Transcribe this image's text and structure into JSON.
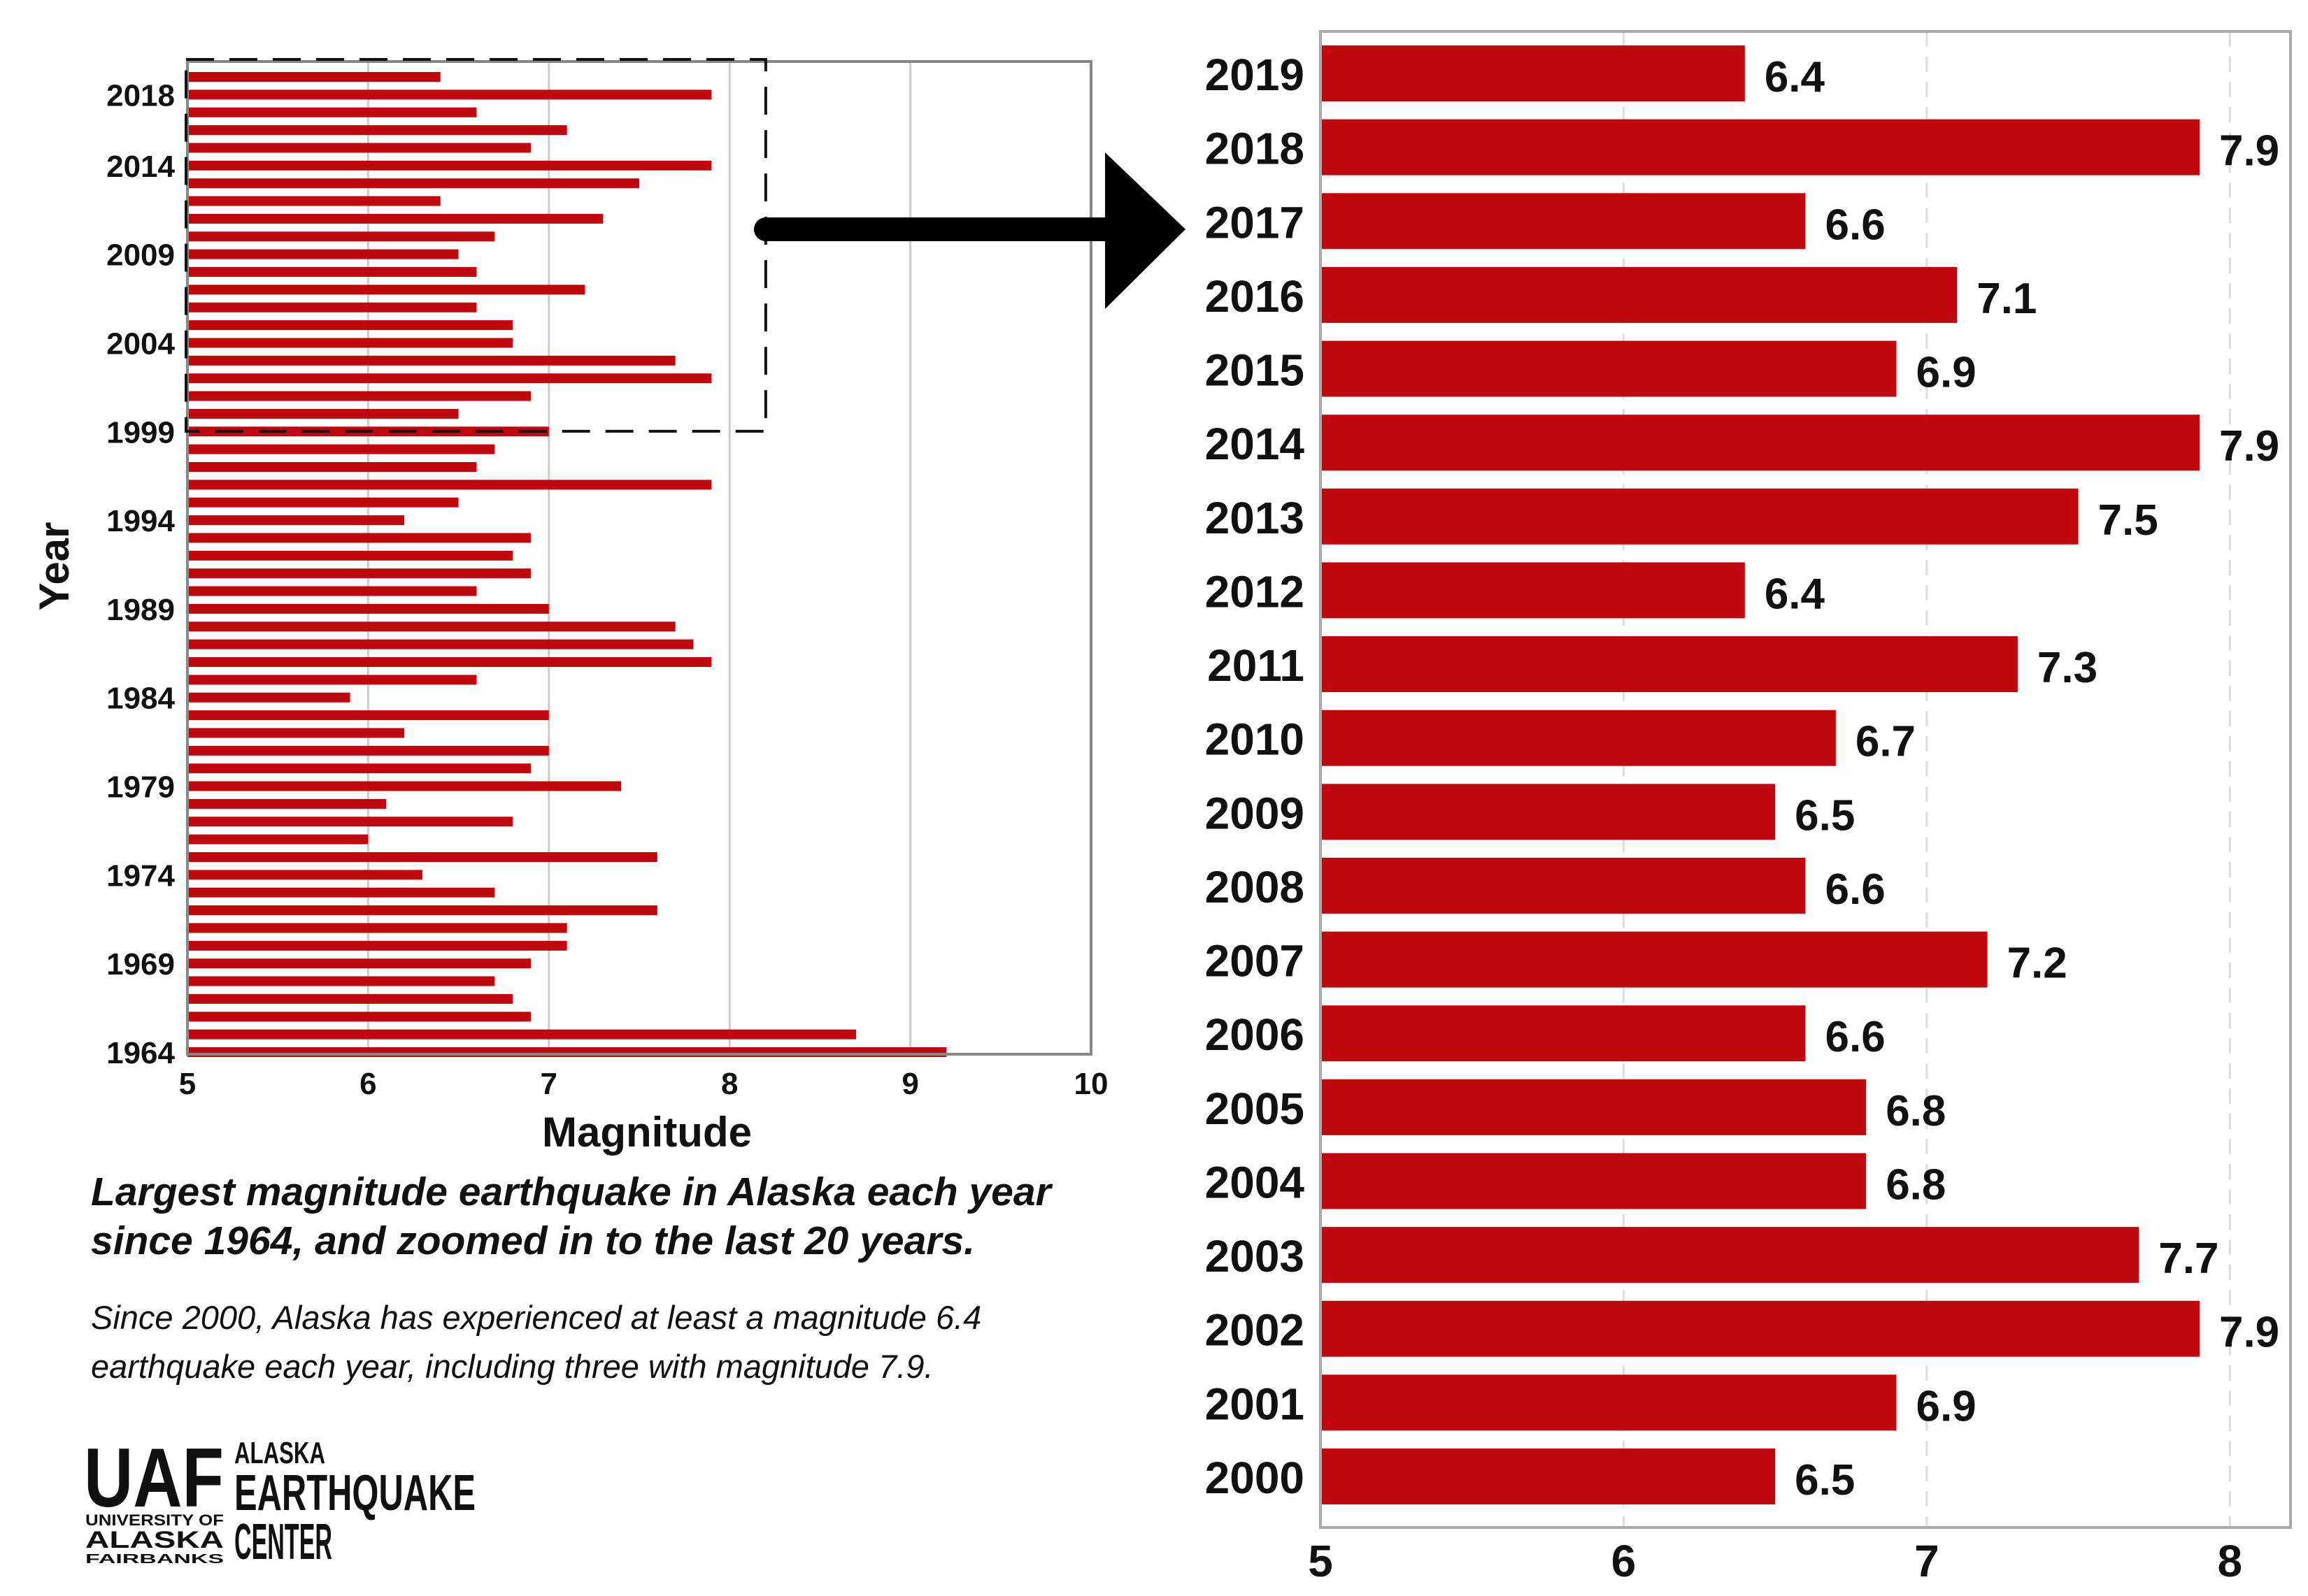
{
  "colors": {
    "bar": "#C0090E",
    "grid": "#cccccc",
    "axis": "#888888",
    "text": "#111111"
  },
  "caption": {
    "title": "Largest magnitude earthquake in Alaska each year since 1964, and zoomed in to the last 20 years.",
    "body": "Since 2000, Alaska has experienced at least a magnitude 6.4 earthquake each year, including three with magnitude 7.9."
  },
  "logo": {
    "mark": "UAF",
    "university_lines": [
      "UNIVERSITY OF",
      "ALASKA",
      "FAIRBANKS"
    ],
    "center_lines": [
      "ALASKA",
      "EARTHQUAKE",
      "CENTER"
    ]
  },
  "chart_data": [
    {
      "type": "bar",
      "orientation": "horizontal",
      "xlabel": "Magnitude",
      "ylabel": "Year",
      "xlim": [
        5,
        10
      ],
      "xticks": [
        5,
        6,
        7,
        8,
        9,
        10
      ],
      "yticks": [
        1964,
        1969,
        1974,
        1979,
        1984,
        1989,
        1994,
        1999,
        2004,
        2009,
        2014,
        2018
      ],
      "grid": "vertical",
      "categories": [
        1964,
        1965,
        1966,
        1967,
        1968,
        1969,
        1970,
        1971,
        1972,
        1973,
        1974,
        1975,
        1976,
        1977,
        1978,
        1979,
        1980,
        1981,
        1982,
        1983,
        1984,
        1985,
        1986,
        1987,
        1988,
        1989,
        1990,
        1991,
        1992,
        1993,
        1994,
        1995,
        1996,
        1997,
        1998,
        1999,
        2000,
        2001,
        2002,
        2003,
        2004,
        2005,
        2006,
        2007,
        2008,
        2009,
        2010,
        2011,
        2012,
        2013,
        2014,
        2015,
        2016,
        2017,
        2018,
        2019
      ],
      "values": [
        9.2,
        8.7,
        6.9,
        6.8,
        6.7,
        6.9,
        7.1,
        7.1,
        7.6,
        6.7,
        6.3,
        7.6,
        6.0,
        6.8,
        6.1,
        7.4,
        6.9,
        7.0,
        6.2,
        7.0,
        5.9,
        6.6,
        7.9,
        7.8,
        7.7,
        7.0,
        6.6,
        6.9,
        6.8,
        6.9,
        6.2,
        6.5,
        7.9,
        6.6,
        6.7,
        7.0,
        6.5,
        6.9,
        7.9,
        7.7,
        6.8,
        6.8,
        6.6,
        7.2,
        6.6,
        6.5,
        6.7,
        7.3,
        6.4,
        7.5,
        7.9,
        6.9,
        7.1,
        6.6,
        7.9,
        6.4
      ]
    },
    {
      "type": "bar",
      "orientation": "horizontal",
      "xlim": [
        5,
        8.2
      ],
      "xticks": [
        5,
        6,
        7,
        8
      ],
      "grid": "vertical-dashed",
      "categories": [
        "2019",
        "2018",
        "2017",
        "2016",
        "2015",
        "2014",
        "2013",
        "2012",
        "2011",
        "2010",
        "2009",
        "2008",
        "2007",
        "2006",
        "2005",
        "2004",
        "2003",
        "2002",
        "2001",
        "2000"
      ],
      "values": [
        6.4,
        7.9,
        6.6,
        7.1,
        6.9,
        7.9,
        7.5,
        6.4,
        7.3,
        6.7,
        6.5,
        6.6,
        7.2,
        6.6,
        6.8,
        6.8,
        7.7,
        7.9,
        6.9,
        6.5
      ],
      "labels": [
        "6.4",
        "7.9",
        "6.6",
        "7.1",
        "6.9",
        "7.9",
        "7.5",
        "6.4",
        "7.3",
        "6.7",
        "6.5",
        "6.6",
        "7.2",
        "6.6",
        "6.8",
        "6.8",
        "7.7",
        "7.9",
        "6.9",
        "6.5"
      ]
    }
  ]
}
